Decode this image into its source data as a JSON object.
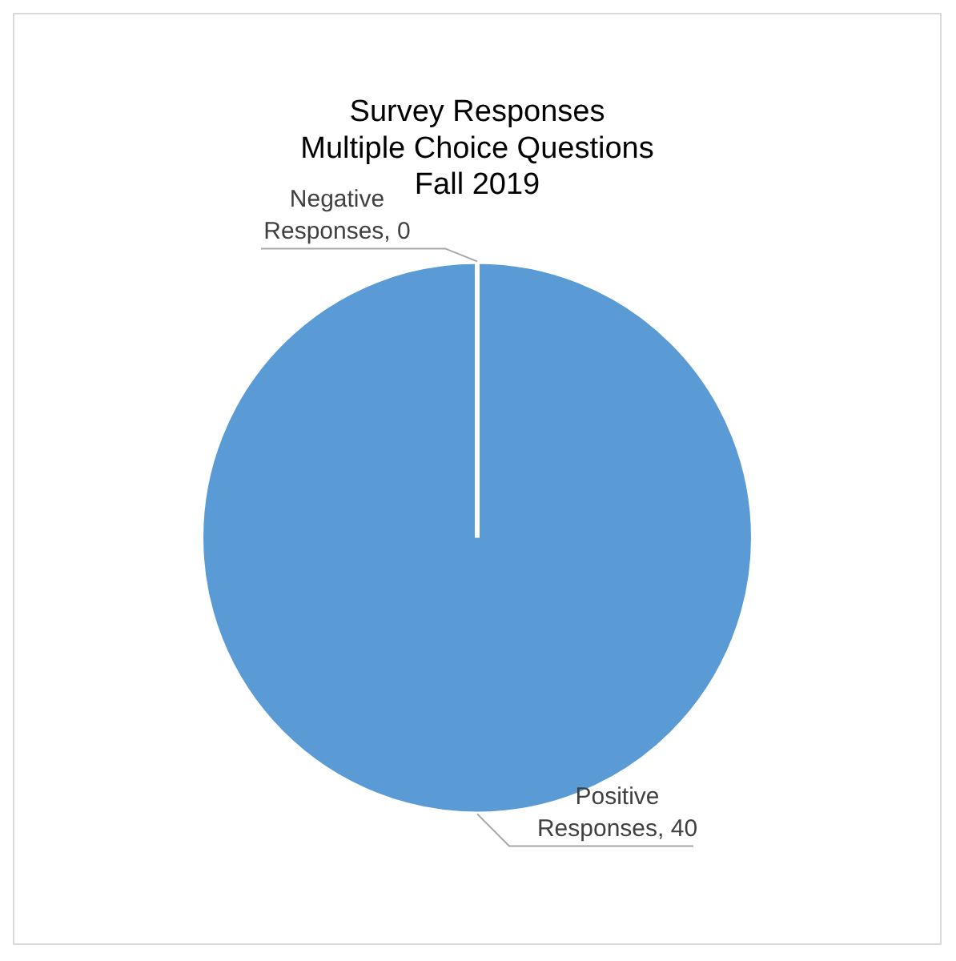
{
  "chart_data": {
    "type": "pie",
    "title": [
      "Survey Responses",
      "Multiple Choice Questions",
      "Fall 2019"
    ],
    "categories": [
      "Negative Responses",
      "Positive Responses"
    ],
    "values": [
      0,
      40
    ],
    "value_labels": [
      ", 0",
      ", 40"
    ],
    "colors": [
      "#ed7d31",
      "#5b9bd5"
    ],
    "legend": false
  }
}
